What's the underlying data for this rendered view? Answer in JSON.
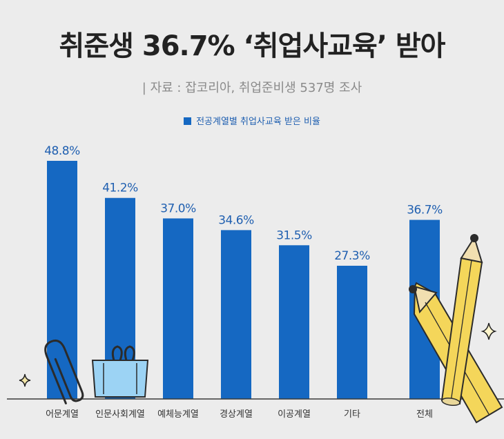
{
  "header": {
    "title": "취준생  36.7% ‘취업사교육’ 받아",
    "source": "| 자료 : 잡코리아, 취업준비생 537명 조사"
  },
  "chart_data": {
    "type": "bar",
    "legend": [
      "전공계열별 취업사교육 받은 비율"
    ],
    "categories": [
      "어문계열",
      "인문사회계열",
      "예체능계열",
      "경상계열",
      "이공계열",
      "기타",
      "전체"
    ],
    "values": [
      48.8,
      41.2,
      37.0,
      34.6,
      31.5,
      27.3,
      36.7
    ],
    "value_labels": [
      "48.8%",
      "41.2%",
      "37.0%",
      "34.6%",
      "31.5%",
      "27.3%",
      "36.7%"
    ],
    "ylim": [
      0,
      48.8
    ],
    "grid": false,
    "legend_position": "top-center"
  },
  "colors": {
    "bar": "#1568c2",
    "label": "#1f5fb0",
    "background": "#ececec"
  },
  "decorations": [
    "paperclip-icon",
    "binder-clip-icon",
    "pencil-icon",
    "sparkle-icon"
  ]
}
